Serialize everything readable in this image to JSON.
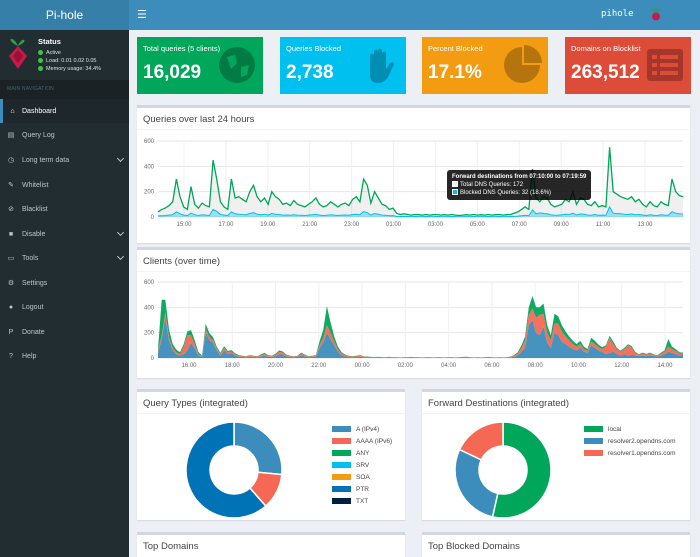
{
  "header": {
    "logo_text": "Pi-hole",
    "menu_icon": "☰",
    "hostname": "pihole"
  },
  "sidebar": {
    "status_title": "Status",
    "status_active": "Active",
    "status_load": "Load:  0.01  0.02  0.05",
    "status_memory": "Memory usage:  34.4%",
    "nav_header": "MAIN NAVIGATION",
    "items": [
      {
        "label": "Dashboard",
        "icon": "home-icon"
      },
      {
        "label": "Query Log",
        "icon": "file-icon"
      },
      {
        "label": "Long term data",
        "icon": "clock-icon"
      },
      {
        "label": "Whitelist",
        "icon": "pencil-icon"
      },
      {
        "label": "Blacklist",
        "icon": "ban-icon"
      },
      {
        "label": "Disable",
        "icon": "stop-icon"
      },
      {
        "label": "Tools",
        "icon": "folder-icon"
      },
      {
        "label": "Settings",
        "icon": "gears-icon"
      },
      {
        "label": "Logout",
        "icon": "user-icon"
      },
      {
        "label": "Donate",
        "icon": "paypal-icon"
      },
      {
        "label": "Help",
        "icon": "question-icon"
      }
    ]
  },
  "stats": [
    {
      "label": "Total queries (5 clients)",
      "value": "16,029",
      "color": "#00a65a",
      "icon": "globe-icon"
    },
    {
      "label": "Queries Blocked",
      "value": "2,738",
      "color": "#00c0ef",
      "icon": "hand-icon"
    },
    {
      "label": "Percent Blocked",
      "value": "17.1%",
      "color": "#f39c12",
      "icon": "pie-icon"
    },
    {
      "label": "Domains on Blocklist",
      "value": "263,512",
      "color": "#dd4b39",
      "icon": "list-icon"
    }
  ],
  "queries_chart": {
    "title": "Queries over last 24 hours",
    "tooltip_title": "Forward destinations from 07:10:00 to 07:19:59",
    "tooltip_total": "Total DNS Queries: 172",
    "tooltip_blocked": "Blocked DNS Queries: 32 (18.6%)"
  },
  "clients_chart": {
    "title": "Clients (over time)"
  },
  "query_types": {
    "title": "Query Types (integrated)"
  },
  "forward_destinations": {
    "title": "Forward Destinations (integrated)"
  },
  "top_domains": {
    "title": "Top Domains"
  },
  "top_blocked": {
    "title": "Top Blocked Domains"
  },
  "chart_data": [
    {
      "type": "line",
      "name": "queries-over-time",
      "x_ticks": [
        "15:00",
        "17:00",
        "19:00",
        "21:00",
        "23:00",
        "01:00",
        "03:00",
        "05:00",
        "07:00",
        "09:00",
        "11:00",
        "13:00"
      ],
      "y_ticks": [
        0,
        200,
        400,
        600
      ],
      "ylim": [
        0,
        600
      ],
      "x_count": 144,
      "series": [
        {
          "color": "#00a65a",
          "values": [
            40,
            60,
            70,
            90,
            120,
            300,
            160,
            80,
            60,
            240,
            100,
            70,
            110,
            90,
            80,
            450,
            300,
            120,
            80,
            60,
            300,
            150,
            160,
            140,
            120,
            200,
            250,
            160,
            120,
            150,
            100,
            200,
            160,
            140,
            100,
            110,
            90,
            130,
            100,
            90,
            80,
            100,
            120,
            150,
            100,
            80,
            90,
            120,
            100,
            80,
            100,
            110,
            90,
            140,
            160,
            120,
            300,
            250,
            110,
            200,
            150,
            100,
            90,
            60,
            70,
            30,
            20,
            25,
            20,
            15,
            20,
            18,
            15,
            20,
            15,
            18,
            20,
            15,
            18,
            15,
            20,
            15,
            12,
            15,
            18,
            15,
            20,
            15,
            18,
            15,
            20,
            15,
            18,
            20,
            15,
            18,
            20,
            30,
            40,
            60,
            80,
            60,
            380,
            150,
            120,
            160,
            150,
            100,
            80,
            90,
            100,
            140,
            120,
            200,
            100,
            150,
            140,
            100,
            90,
            120,
            80,
            90,
            80,
            550,
            200,
            180,
            160,
            150,
            140,
            160,
            120,
            140,
            100,
            80,
            120,
            90,
            80,
            120,
            100,
            90,
            300,
            200,
            170,
            160
          ]
        },
        {
          "color": "#00c0ef",
          "values": [
            10,
            10,
            12,
            15,
            18,
            40,
            25,
            15,
            12,
            30,
            18,
            12,
            18,
            15,
            12,
            60,
            45,
            20,
            15,
            12,
            40,
            25,
            22,
            20,
            18,
            28,
            35,
            22,
            18,
            22,
            15,
            28,
            22,
            20,
            15,
            16,
            14,
            18,
            15,
            14,
            12,
            15,
            18,
            22,
            15,
            12,
            14,
            18,
            15,
            12,
            15,
            16,
            14,
            20,
            22,
            18,
            42,
            35,
            16,
            28,
            22,
            15,
            14,
            10,
            11,
            5,
            4,
            4,
            4,
            3,
            4,
            3,
            3,
            4,
            3,
            3,
            4,
            3,
            3,
            3,
            4,
            3,
            2,
            3,
            3,
            3,
            4,
            3,
            3,
            3,
            4,
            3,
            3,
            4,
            3,
            3,
            4,
            5,
            7,
            10,
            14,
            10,
            55,
            25,
            32,
            28,
            25,
            18,
            14,
            15,
            18,
            22,
            20,
            30,
            16,
            24,
            22,
            16,
            14,
            20,
            14,
            15,
            14,
            80,
            30,
            28,
            25,
            22,
            20,
            24,
            18,
            20,
            16,
            12,
            18,
            14,
            12,
            18,
            15,
            14,
            42,
            30,
            26,
            24
          ]
        }
      ]
    },
    {
      "type": "area",
      "name": "clients-over-time",
      "x_ticks": [
        "16:00",
        "18:00",
        "20:00",
        "22:00",
        "00:00",
        "02:00",
        "04:00",
        "06:00",
        "08:00",
        "10:00",
        "12:00",
        "14:00"
      ],
      "y_ticks": [
        0,
        200,
        400,
        600
      ],
      "ylim": [
        0,
        600
      ],
      "x_count": 144,
      "series": [
        {
          "color": "#3c8dbc",
          "values": [
            40,
            150,
            320,
            140,
            60,
            30,
            20,
            30,
            60,
            120,
            80,
            20,
            10,
            200,
            140,
            120,
            60,
            20,
            60,
            30,
            40,
            20,
            10,
            8,
            6,
            10,
            8,
            6,
            12,
            18,
            10,
            8,
            14,
            30,
            25,
            12,
            8,
            6,
            8,
            20,
            12,
            6,
            8,
            10,
            80,
            120,
            200,
            150,
            100,
            50,
            20,
            12,
            8,
            6,
            8,
            10,
            6,
            5,
            4,
            3,
            4,
            3,
            3,
            4,
            3,
            3,
            2,
            3,
            3,
            4,
            3,
            3,
            2,
            3,
            3,
            2,
            3,
            3,
            2,
            3,
            3,
            2,
            3,
            4,
            5,
            3,
            2,
            3,
            2,
            3,
            4,
            3,
            2,
            3,
            2,
            3,
            5,
            10,
            20,
            50,
            80,
            260,
            300,
            200,
            180,
            250,
            120,
            80,
            200,
            180,
            130,
            110,
            90,
            70,
            60,
            80,
            50,
            40,
            100,
            80,
            60,
            50,
            30,
            40,
            50,
            30,
            20,
            30,
            20,
            25,
            20,
            15,
            20,
            15,
            20,
            15,
            10,
            20,
            30,
            50,
            40,
            30,
            20,
            25
          ]
        },
        {
          "color": "#f56954",
          "values": [
            20,
            30,
            40,
            25,
            20,
            15,
            10,
            60,
            120,
            60,
            30,
            10,
            5,
            30,
            25,
            20,
            15,
            10,
            20,
            15,
            12,
            10,
            8,
            6,
            5,
            8,
            6,
            5,
            10,
            15,
            8,
            6,
            12,
            20,
            18,
            10,
            6,
            5,
            6,
            15,
            10,
            5,
            6,
            8,
            20,
            40,
            60,
            50,
            30,
            20,
            15,
            10,
            6,
            5,
            6,
            8,
            5,
            4,
            3,
            3,
            3,
            3,
            2,
            3,
            2,
            2,
            2,
            2,
            2,
            3,
            2,
            2,
            2,
            2,
            2,
            2,
            2,
            2,
            2,
            2,
            2,
            2,
            2,
            3,
            3,
            2,
            2,
            2,
            2,
            2,
            3,
            2,
            2,
            2,
            2,
            2,
            3,
            8,
            15,
            30,
            60,
            80,
            90,
            120,
            160,
            100,
            80,
            60,
            70,
            90,
            80,
            60,
            50,
            40,
            30,
            30,
            20,
            15,
            30,
            30,
            25,
            20,
            60,
            120,
            60,
            40,
            30,
            40,
            80,
            60,
            20,
            10,
            15,
            12,
            15,
            10,
            8,
            15,
            20,
            40,
            30,
            25,
            15,
            10
          ]
        },
        {
          "color": "#00a65a",
          "values": [
            10,
            280,
            100,
            60,
            30,
            20,
            15,
            20,
            30,
            40,
            30,
            15,
            5,
            40,
            30,
            25,
            15,
            10,
            15,
            10,
            10,
            8,
            5,
            4,
            3,
            5,
            4,
            3,
            6,
            8,
            5,
            4,
            8,
            10,
            8,
            5,
            3,
            3,
            4,
            8,
            5,
            3,
            4,
            5,
            30,
            60,
            150,
            80,
            40,
            20,
            10,
            5,
            4,
            3,
            4,
            5,
            3,
            3,
            2,
            2,
            2,
            2,
            2,
            2,
            2,
            2,
            1,
            2,
            2,
            2,
            2,
            2,
            1,
            2,
            2,
            1,
            2,
            2,
            1,
            2,
            2,
            1,
            2,
            2,
            2,
            2,
            1,
            2,
            1,
            2,
            2,
            2,
            1,
            2,
            1,
            2,
            3,
            5,
            10,
            20,
            30,
            60,
            100,
            80,
            60,
            80,
            60,
            40,
            80,
            60,
            50,
            40,
            30,
            25,
            20,
            25,
            20,
            15,
            30,
            25,
            20,
            15,
            10,
            15,
            20,
            10,
            8,
            10,
            8,
            10,
            8,
            5,
            8,
            5,
            8,
            5,
            4,
            8,
            10,
            60,
            20,
            15,
            10,
            8
          ]
        }
      ]
    },
    {
      "type": "pie",
      "name": "query-types",
      "labels": [
        "A (IPv4)",
        "AAAA (IPv6)",
        "ANY",
        "SRV",
        "SOA",
        "PTR",
        "TXT"
      ],
      "values": [
        26.5,
        12.0,
        0,
        0,
        0,
        61.5,
        0
      ],
      "colors": [
        "#3c8dbc",
        "#f56954",
        "#00a65a",
        "#00c0ef",
        "#f39c12",
        "#0073b7",
        "#001f3f"
      ]
    },
    {
      "type": "pie",
      "name": "forward-destinations",
      "labels": [
        "local",
        "resolver2.opendns.com",
        "resolver1.opendns.com"
      ],
      "values": [
        53.5,
        28.5,
        18.0
      ],
      "colors": [
        "#00a65a",
        "#3c8dbc",
        "#f56954"
      ]
    }
  ]
}
